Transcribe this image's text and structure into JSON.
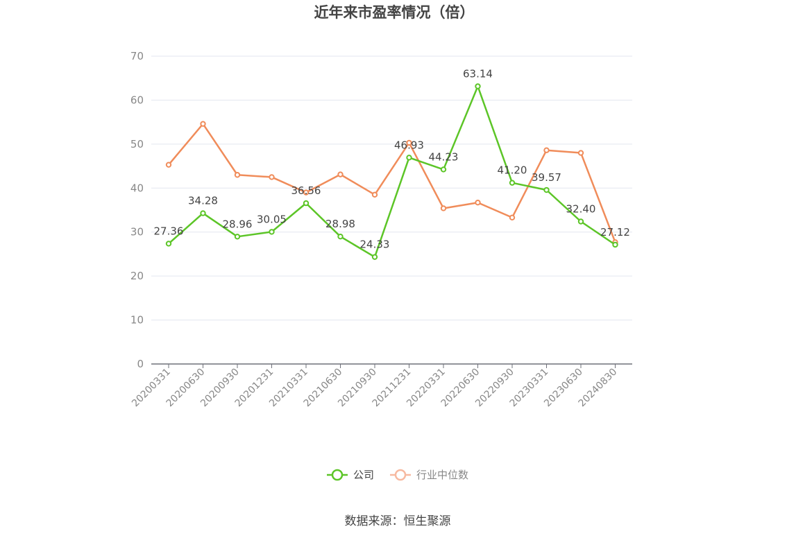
{
  "chart_data": {
    "type": "line",
    "title": "近年来市盈率情况（倍）",
    "source_note": "数据来源：恒生聚源",
    "categories": [
      "20200331",
      "20200630",
      "20200930",
      "20201231",
      "20210331",
      "20210630",
      "20210930",
      "20211231",
      "20220331",
      "20220630",
      "20220930",
      "20230331",
      "20230630",
      "20240830"
    ],
    "y_ticks": [
      "0",
      "10",
      "20",
      "30",
      "40",
      "50",
      "60",
      "70"
    ],
    "ylim": [
      0,
      70
    ],
    "grid": true,
    "legend_position": "bottom-center",
    "series": [
      {
        "name": "公司",
        "color": "#5cc527",
        "values": [
          27.36,
          34.28,
          28.96,
          30.05,
          36.56,
          28.98,
          24.33,
          46.93,
          44.23,
          63.14,
          41.2,
          39.57,
          32.4,
          27.12
        ],
        "labels": [
          "27.36",
          "34.28",
          "28.96",
          "30.05",
          "36.56",
          "28.98",
          "24.33",
          "46.93",
          "44.23",
          "63.14",
          "41.20",
          "39.57",
          "32.40",
          "27.12"
        ]
      },
      {
        "name": "行业中位数",
        "color": "#f08c5a",
        "legend_color": "#f7b9a0",
        "values": [
          45.3,
          54.6,
          43.0,
          42.5,
          39.0,
          43.1,
          38.5,
          50.3,
          35.4,
          36.7,
          33.3,
          48.6,
          48.0,
          27.7
        ]
      }
    ]
  }
}
